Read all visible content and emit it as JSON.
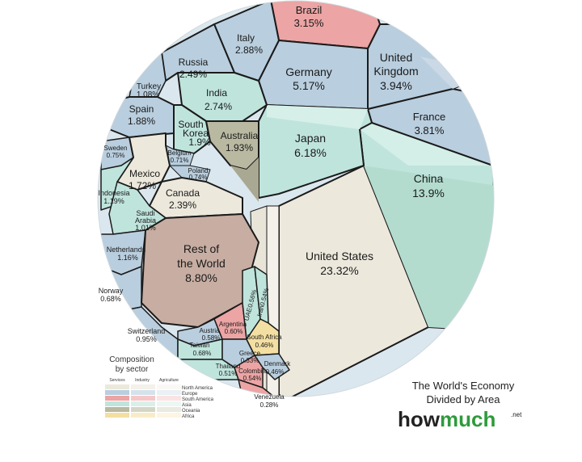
{
  "diagram": {
    "title_line1": "The World's Economy",
    "title_line2": "Divided by Area",
    "brand_how": "how",
    "brand_much": "much",
    "brand_tld": ".net",
    "countries": [
      {
        "name": "United States",
        "value": "23.32%"
      },
      {
        "name": "China",
        "value": "13.9%"
      },
      {
        "name": "Rest of",
        "name2": "the World",
        "value": "8.80%"
      },
      {
        "name": "Japan",
        "value": "6.18%"
      },
      {
        "name": "Germany",
        "value": "5.17%"
      },
      {
        "name": "United",
        "name2": "Kingdom",
        "value": "3.94%"
      },
      {
        "name": "France",
        "value": "3.81%"
      },
      {
        "name": "Brazil",
        "value": "3.15%"
      },
      {
        "name": "Italy",
        "value": "2.88%"
      },
      {
        "name": "India",
        "value": "2.74%"
      },
      {
        "name": "Russia",
        "value": "2.49%"
      },
      {
        "name": "Canada",
        "value": "2.39%"
      },
      {
        "name": "Australia",
        "value": "1.93%"
      },
      {
        "name": "South",
        "name2": "Korea",
        "value": "1.9%"
      },
      {
        "name": "Spain",
        "value": "1.88%"
      },
      {
        "name": "Mexico",
        "value": "1.72%"
      },
      {
        "name": "Indonesia",
        "value": "1.19%"
      },
      {
        "name": "Netherlands",
        "value": "1.16%"
      },
      {
        "name": "Turkey",
        "value": "1.08%"
      },
      {
        "name": "Saudi",
        "name2": "Arabia",
        "value": "1.01%"
      },
      {
        "name": "Switzerland",
        "value": "0.95%"
      },
      {
        "name": "Sweden",
        "value": "0.75%"
      },
      {
        "name": "Poland",
        "value": "0.74%"
      },
      {
        "name": "Belgium",
        "value": "0.71%"
      },
      {
        "name": "Norway",
        "value": "0.68%"
      },
      {
        "name": "Taiwan",
        "value": "0.68%"
      },
      {
        "name": "Argentina",
        "value": "0.60%"
      },
      {
        "name": "Austria",
        "value": "0.58%"
      },
      {
        "name": "UAE",
        "value": "0.56%"
      },
      {
        "name": "Iran",
        "value": "0.54%"
      },
      {
        "name": "Colombia",
        "value": "0.54%"
      },
      {
        "name": "Thailand",
        "value": "0.51%"
      },
      {
        "name": "South Africa",
        "value": "0.46%"
      },
      {
        "name": "Denmark",
        "value": "0.46%"
      },
      {
        "name": "Greece",
        "value": "0.33%"
      },
      {
        "name": "Venezuela",
        "value": "0.28%"
      }
    ],
    "legend": {
      "title_line1": "Composition",
      "title_line2": "by sector",
      "columns": [
        "Services",
        "Industry",
        "Agriculture"
      ],
      "regions": [
        "North America",
        "Europe",
        "South America",
        "Asia",
        "Oceania",
        "Africa"
      ],
      "colors": [
        "#ece8dc",
        "#b9cede",
        "#eca4a4",
        "#bfe4dc",
        "#b9b9a2",
        "#f4dfa3"
      ]
    },
    "colors": {
      "north_america": "#ece8dc",
      "europe": "#b9cede",
      "south_america": "#eca4a4",
      "asia": "#bfe4dc",
      "oceania": "#b9b9a2",
      "africa": "#f4dfa3",
      "rest": "#c7ada2"
    }
  }
}
